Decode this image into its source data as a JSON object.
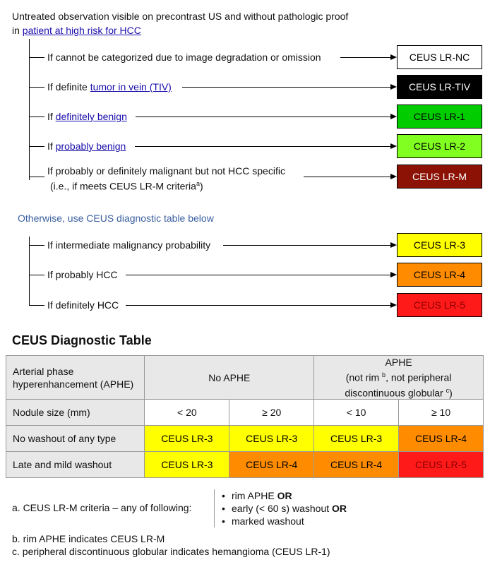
{
  "intro": {
    "line1": "Untreated observation visible on precontrast US and without pathologic proof",
    "line2_prefix": "in ",
    "line2_link": "patient at high risk for HCC"
  },
  "rows": [
    {
      "pre": "If cannot be categorized due to image degradation or omission",
      "link": "",
      "post": "",
      "cat": "CEUS LR-NC",
      "bg": "#ffffff",
      "fg": "#000000"
    },
    {
      "pre": "If definite ",
      "link": "tumor in vein (TIV)",
      "post": "",
      "cat": "CEUS LR-TIV",
      "bg": "#000000",
      "fg": "#ffffff"
    },
    {
      "pre": "If ",
      "link": "definitely benign",
      "post": "",
      "cat": "CEUS LR-1",
      "bg": "#00cc00",
      "fg": "#000000"
    },
    {
      "pre": "If ",
      "link": "probably benign",
      "post": "",
      "cat": "CEUS LR-2",
      "bg": "#80ff20",
      "fg": "#000000"
    },
    {
      "pre": "If probably or definitely malignant but not HCC specific",
      "pre2": "(i.e., if meets CEUS LR-M criteria",
      "sup": "a",
      "post2": ")",
      "link": "",
      "post": "",
      "cat": "CEUS LR-M",
      "bg": "#8b1205",
      "fg": "#ffffff"
    }
  ],
  "otherwise": "Otherwise, use CEUS diagnostic table below",
  "rows2": [
    {
      "pre": "If intermediate malignancy probability",
      "cat": "CEUS LR-3",
      "bg": "#ffff00",
      "fg": "#000000"
    },
    {
      "pre": "If probably HCC",
      "cat": "CEUS LR-4",
      "bg": "#ff8c00",
      "fg": "#000000"
    },
    {
      "pre": "If definitely HCC",
      "cat": "CEUS LR-5",
      "bg": "#ff1a1a",
      "fg": "#8b0000"
    }
  ],
  "table": {
    "title": "CEUS Diagnostic Table",
    "h1": "Arterial phase hyperenhancement (APHE)",
    "no_aphe": "No APHE",
    "aphe": "APHE",
    "aphe_sub1": "(not rim ",
    "aphe_sub_sup1": "b",
    "aphe_sub2": ", not peripheral",
    "aphe_sub3": "discontinuous globular ",
    "aphe_sub_sup2": "c",
    "aphe_sub4": ")",
    "size_label": "Nodule size (mm)",
    "sizes": [
      "< 20",
      "≥ 20",
      "< 10",
      "≥ 10"
    ],
    "body": [
      {
        "label": "No washout of any type",
        "cells": [
          {
            "text": "CEUS LR-3",
            "bg": "#ffff00",
            "fg": "#000000"
          },
          {
            "text": "CEUS LR-3",
            "bg": "#ffff00",
            "fg": "#000000"
          },
          {
            "text": "CEUS LR-3",
            "bg": "#ffff00",
            "fg": "#000000"
          },
          {
            "text": "CEUS LR-4",
            "bg": "#ff8c00",
            "fg": "#000000"
          }
        ]
      },
      {
        "label": "Late and mild washout",
        "cells": [
          {
            "text": "CEUS LR-3",
            "bg": "#ffff00",
            "fg": "#000000"
          },
          {
            "text": "CEUS LR-4",
            "bg": "#ff8c00",
            "fg": "#000000"
          },
          {
            "text": "CEUS LR-4",
            "bg": "#ff8c00",
            "fg": "#000000"
          },
          {
            "text": "CEUS LR-5",
            "bg": "#ff1a1a",
            "fg": "#8b0000"
          }
        ]
      }
    ]
  },
  "notes": {
    "a": "a. CEUS LR-M criteria – any of following:",
    "bullets": [
      {
        "text": "rim APHE ",
        "bold": "OR"
      },
      {
        "text": "early (< 60 s) washout ",
        "bold": "OR"
      },
      {
        "text": "marked washout",
        "bold": ""
      }
    ],
    "b": "b. rim APHE indicates CEUS LR-M",
    "c": "c. peripheral discontinuous globular indicates hemangioma (CEUS LR-1)"
  }
}
